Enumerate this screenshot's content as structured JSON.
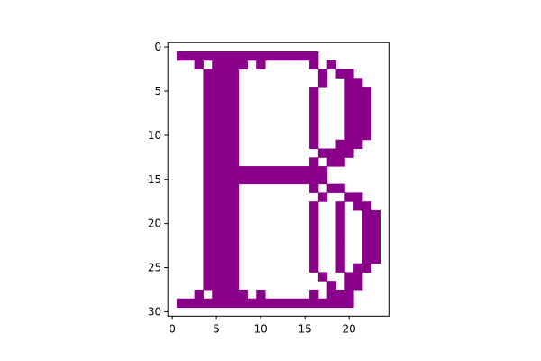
{
  "chart_data": {
    "type": "heatmap",
    "title": "",
    "xlabel": "",
    "ylabel": "",
    "rows": 31,
    "cols": 25,
    "xlim": [
      -0.5,
      24.5
    ],
    "ylim": [
      30.5,
      -0.5
    ],
    "x_ticks": [
      0,
      5,
      10,
      15,
      20
    ],
    "y_ticks": [
      0,
      5,
      10,
      15,
      20,
      25,
      30
    ],
    "grid": false,
    "colors": {
      "on": "#8b008b",
      "off": "#ffffff"
    },
    "pixel_map": [
      ".........................",
      ".XXXXXXXXXXXXXXXX........",
      "...X.XXXX.X.....X.X......",
      "....XXXX.........X.XX....",
      "....XXXX.........X..XX...",
      "....XXXX........X...XXX..",
      "....XXXX........X...XXX..",
      "....XXXX........X...XXX..",
      "....XXXX........X...XXX..",
      "....XXXX........X...XXX..",
      "....XXXX........X...XXX..",
      "....XXXX........X..XXX...",
      "....XXXX.........XXXX....",
      "....XXXX........X.XX.....",
      "....XXXXXXXXXXXXXX.......",
      "....XXXXXXXXXXXXXX.......",
      "....XXXX........X.XX.....",
      "....XXXX.........X..XX...",
      "....XXXX........X..X.XX..",
      "....XXXX........X..X..XX.",
      "....XXXX........X..X..XX.",
      "....XXXX........X..X..XX.",
      "....XXXX........X..X..XX.",
      "....XXXX........X..X..XX.",
      "....XXXX........X..X..XX.",
      "....XXXX........X..X.XX..",
      "....XXXX.........X..XX...",
      "....XXXX..........X.XX...",
      "...X.XXXX.X.....X.XXX....",
      ".XXXXXXXXXXXXXXXXXXXX....",
      "........................."
    ]
  }
}
